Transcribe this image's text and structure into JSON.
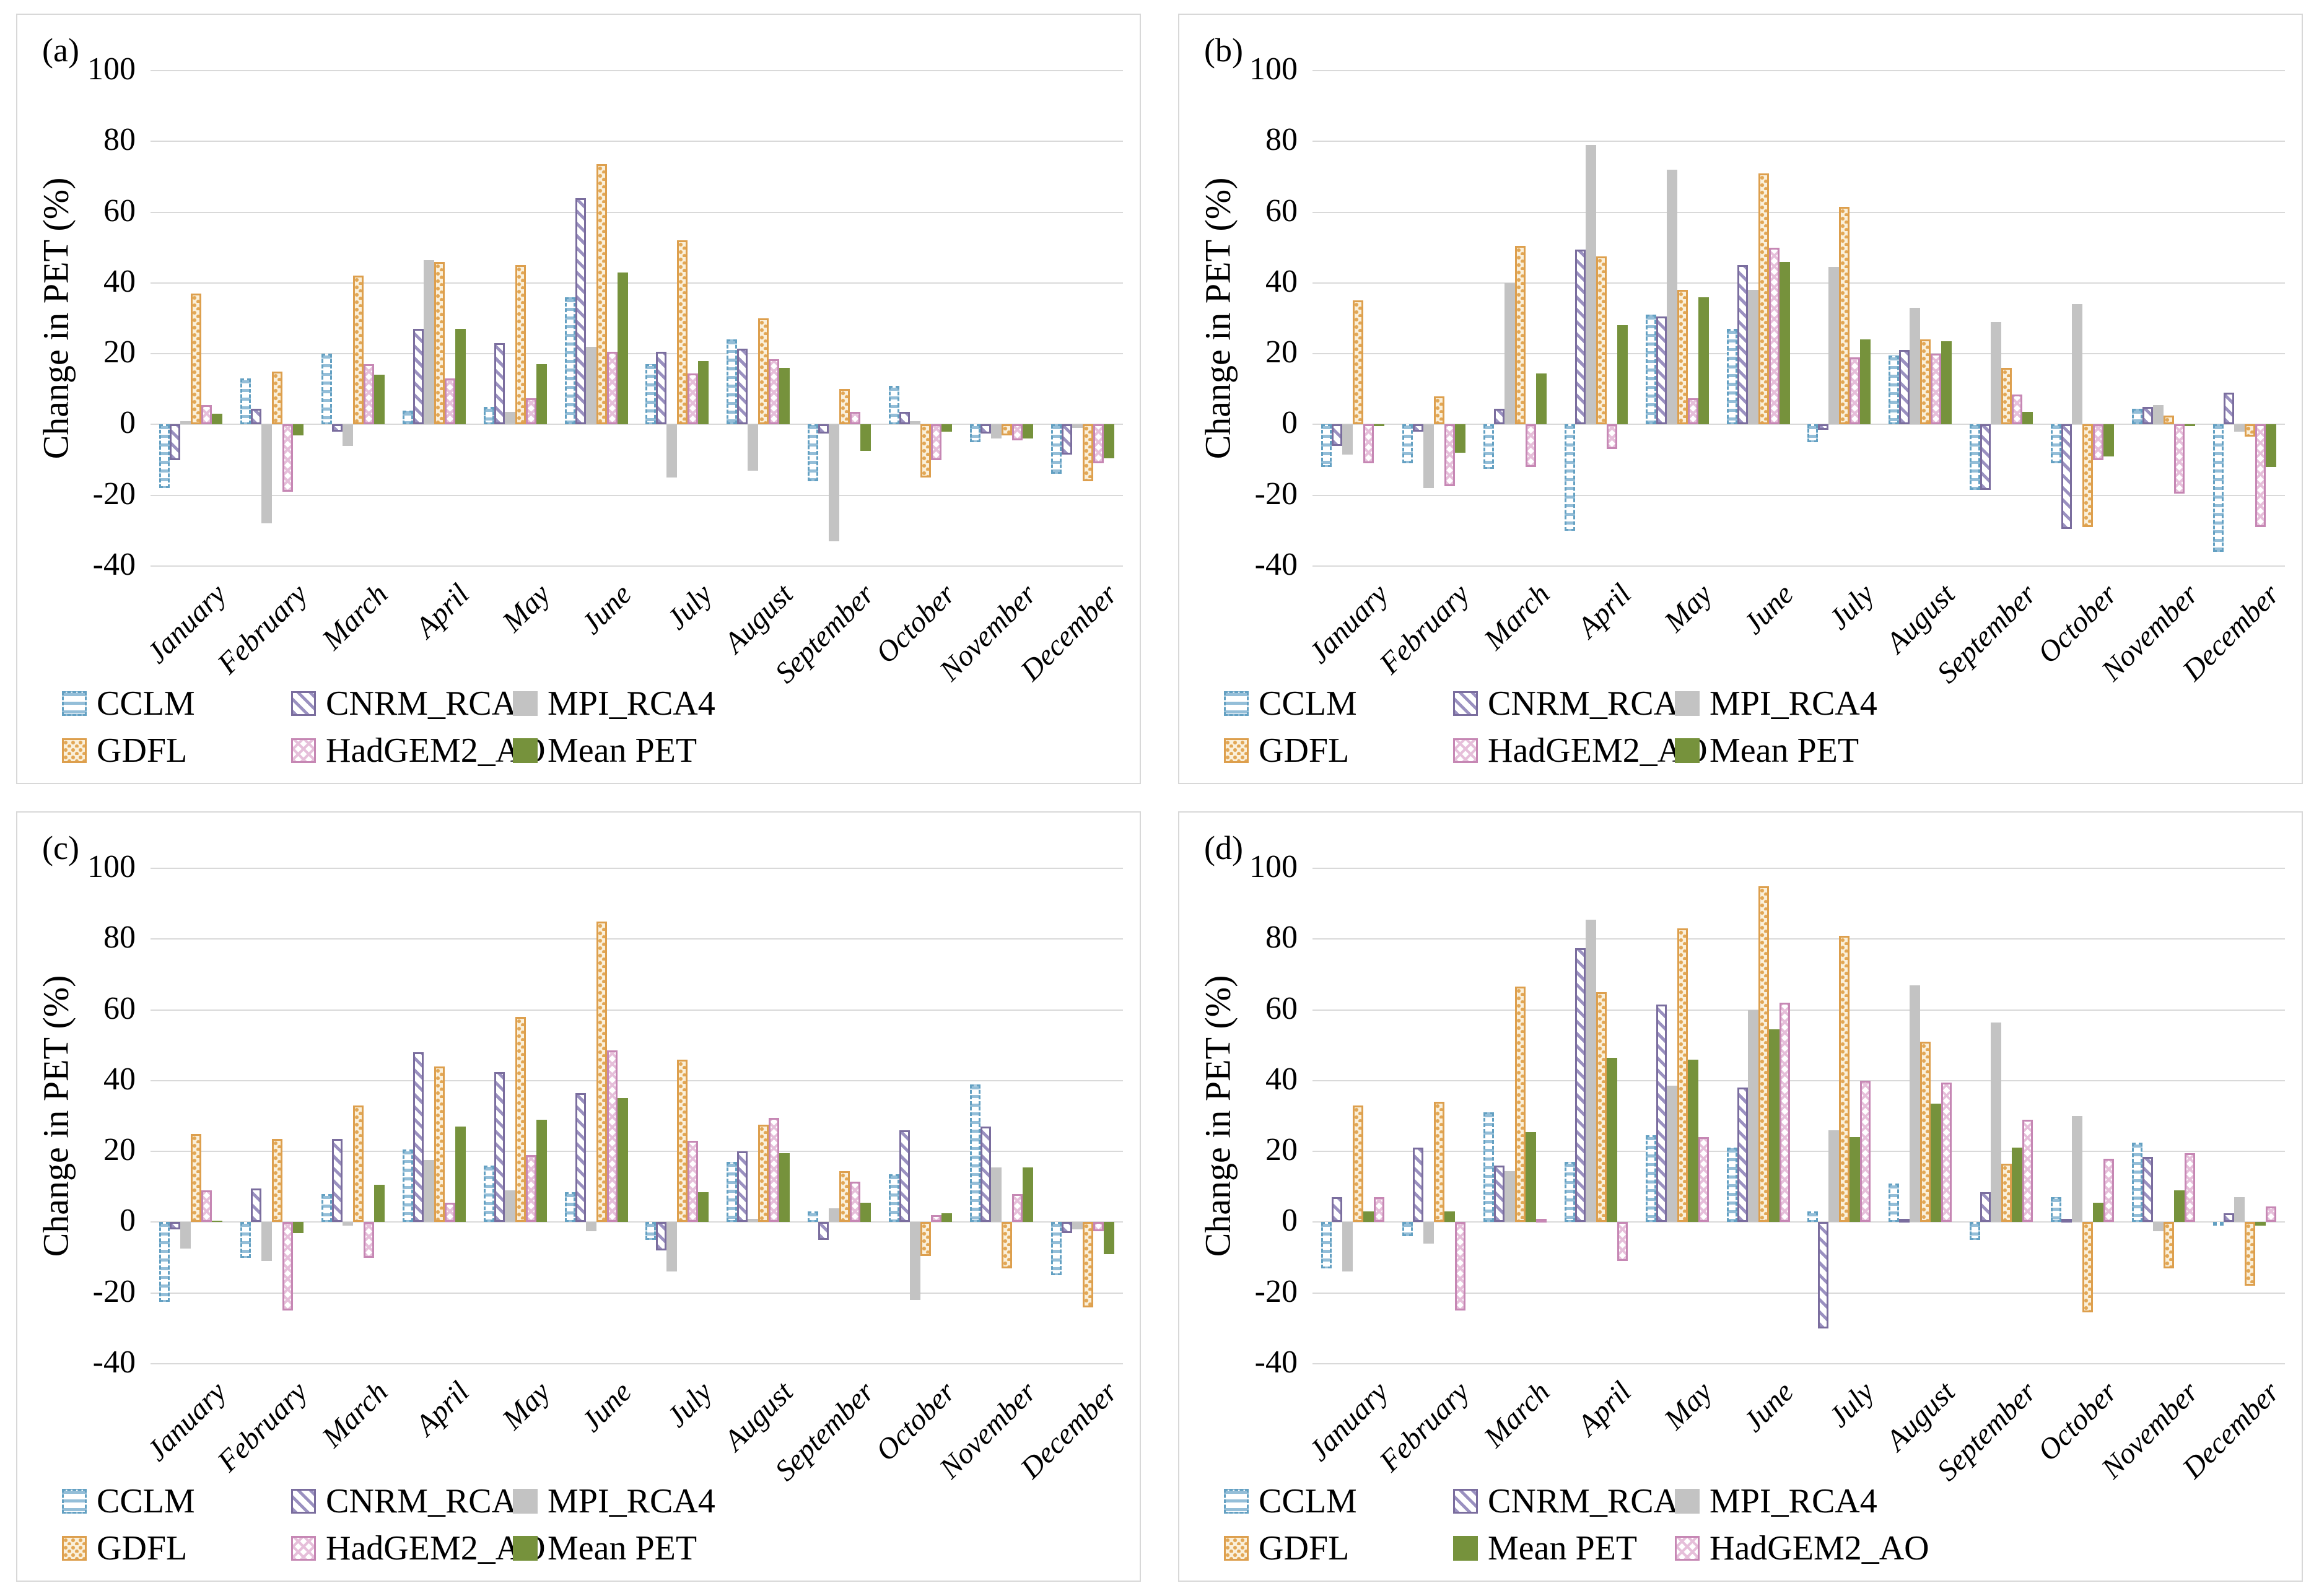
{
  "figure": {
    "ylabel": "Change in PET (%)"
  },
  "colors": {
    "CCLM": "#63a0c2",
    "CNRM_RCA": "#7a6d9e",
    "MPI_RCA4": "#c3c3c3",
    "GDFL": "#dd9f4d",
    "HadGEM2_AO": "#c687b4",
    "Mean PET": "#76923c",
    "grid": "#d9d9d9"
  },
  "chart_data": [
    {
      "id": "a",
      "label": "(a)",
      "type": "bar",
      "ylabel": "Change in PET (%)",
      "ylim": [
        -40,
        100
      ],
      "yticks": [
        100,
        80,
        60,
        40,
        20,
        0,
        -20,
        -40
      ],
      "categories": [
        "January",
        "February",
        "March",
        "April",
        "May",
        "June",
        "July",
        "August",
        "September",
        "October",
        "November",
        "December"
      ],
      "series": [
        {
          "name": "CCLM",
          "values": [
            -18,
            13,
            20,
            4,
            5,
            36,
            17,
            24,
            -16,
            11,
            -5,
            -14
          ]
        },
        {
          "name": "CNRM_RCA",
          "values": [
            -10,
            4.5,
            -2,
            27,
            23,
            64,
            20.5,
            21.5,
            -2.5,
            3.5,
            -2.5,
            -8.5
          ]
        },
        {
          "name": "MPI_RCA4",
          "values": [
            1,
            -28,
            -6,
            46.5,
            3.5,
            22,
            -15,
            -13,
            -33,
            1,
            -4,
            -1
          ]
        },
        {
          "name": "GDFL",
          "values": [
            37,
            15,
            42,
            46,
            45,
            73.5,
            52,
            30,
            10,
            -15,
            -3,
            -16
          ]
        },
        {
          "name": "HadGEM2_AO",
          "values": [
            5.5,
            -19,
            17,
            13,
            7.5,
            20.5,
            14.5,
            18.5,
            3.5,
            -10,
            -4.5,
            -11
          ]
        },
        {
          "name": "Mean PET",
          "values": [
            3,
            -3,
            14,
            27,
            17,
            43,
            18,
            16,
            -7.5,
            -2,
            -4,
            -9.5
          ]
        }
      ],
      "legend_rows": [
        [
          "CCLM",
          "CNRM_RCA",
          "MPI_RCA4"
        ],
        [
          "GDFL",
          "HadGEM2_AO",
          "Mean PET"
        ]
      ]
    },
    {
      "id": "b",
      "label": "(b)",
      "type": "bar",
      "ylabel": "Change in PET (%)",
      "ylim": [
        -40,
        100
      ],
      "yticks": [
        100,
        80,
        60,
        40,
        20,
        0,
        -20,
        -40
      ],
      "categories": [
        "January",
        "February",
        "March",
        "April",
        "May",
        "June",
        "July",
        "August",
        "September",
        "October",
        "November",
        "December"
      ],
      "series": [
        {
          "name": "CCLM",
          "values": [
            -12,
            -11,
            -12.5,
            -30,
            31,
            27,
            -5,
            19.5,
            -18.5,
            -11,
            4.5,
            -36
          ]
        },
        {
          "name": "CNRM_RCA",
          "values": [
            -6,
            -2,
            4.5,
            49.5,
            30.5,
            45,
            -1.5,
            21,
            -18.5,
            -29.5,
            5,
            9
          ]
        },
        {
          "name": "MPI_RCA4",
          "values": [
            -8.5,
            -18,
            40,
            79,
            72,
            38,
            44.5,
            33,
            29,
            34,
            5.5,
            -2
          ]
        },
        {
          "name": "GDFL",
          "values": [
            35,
            8,
            50.5,
            47.5,
            38,
            71,
            61.5,
            24,
            16,
            -29,
            2.5,
            -3.5
          ]
        },
        {
          "name": "HadGEM2_AO",
          "values": [
            -11,
            -17.5,
            -12,
            -7,
            7.5,
            50,
            19,
            20,
            8.5,
            -10,
            -19.5,
            -29
          ]
        },
        {
          "name": "Mean PET",
          "values": [
            -0.5,
            -8,
            14.5,
            28,
            36,
            46,
            24,
            23.5,
            3.5,
            -9,
            -0.5,
            -12
          ]
        }
      ],
      "legend_rows": [
        [
          "CCLM",
          "CNRM_RCA",
          "MPI_RCA4"
        ],
        [
          "GDFL",
          "HadGEM2_AO",
          "Mean PET"
        ]
      ]
    },
    {
      "id": "c",
      "label": "(c)",
      "type": "bar",
      "ylabel": "Change in PET (%)",
      "ylim": [
        -40,
        100
      ],
      "yticks": [
        100,
        80,
        60,
        40,
        20,
        0,
        -20,
        -40
      ],
      "categories": [
        "January",
        "February",
        "March",
        "April",
        "May",
        "June",
        "July",
        "August",
        "September",
        "October",
        "November",
        "December"
      ],
      "series": [
        {
          "name": "CCLM",
          "values": [
            -22.5,
            -10,
            8,
            20.5,
            16,
            8.5,
            -5,
            17,
            3,
            13.5,
            39,
            -15
          ]
        },
        {
          "name": "CNRM_RCA",
          "values": [
            -2,
            9.5,
            23.5,
            48,
            42.5,
            36.5,
            -8,
            20,
            -5,
            26,
            27,
            -3
          ]
        },
        {
          "name": "MPI_RCA4",
          "values": [
            -7.5,
            -11,
            -1,
            17.5,
            9,
            -2.5,
            -14,
            1,
            4,
            -22,
            15.5,
            -2
          ]
        },
        {
          "name": "GDFL",
          "values": [
            25,
            23.5,
            33,
            44,
            58,
            85,
            46,
            27.5,
            14.5,
            -9.5,
            -13,
            -24
          ]
        },
        {
          "name": "HadGEM2_AO",
          "values": [
            9,
            -25,
            -10,
            5.5,
            19,
            48.5,
            23,
            29.5,
            11.5,
            2,
            8,
            -2.5
          ]
        },
        {
          "name": "Mean PET",
          "values": [
            0.5,
            -3,
            10.5,
            27,
            29,
            35,
            8.5,
            19.5,
            5.5,
            2.5,
            15.5,
            -9
          ]
        }
      ],
      "legend_rows": [
        [
          "CCLM",
          "CNRM_RCA",
          "MPI_RCA4"
        ],
        [
          "GDFL",
          "HadGEM2_AO",
          "Mean PET"
        ]
      ]
    },
    {
      "id": "d",
      "label": "(d)",
      "type": "bar",
      "ylabel": "Change in PET (%)",
      "ylim": [
        -40,
        100
      ],
      "yticks": [
        100,
        80,
        60,
        40,
        20,
        0,
        -20,
        -40
      ],
      "categories": [
        "January",
        "February",
        "March",
        "April",
        "May",
        "June",
        "July",
        "August",
        "September",
        "October",
        "November",
        "December"
      ],
      "series": [
        {
          "name": "CCLM",
          "values": [
            -13,
            -4,
            31,
            17,
            24.5,
            21,
            3,
            11,
            -5,
            7,
            22.5,
            -1
          ]
        },
        {
          "name": "CNRM_RCA",
          "values": [
            7,
            21,
            16,
            77.5,
            61.5,
            38,
            -30,
            1,
            8.5,
            1,
            18.5,
            2.5
          ]
        },
        {
          "name": "MPI_RCA4",
          "values": [
            -14,
            -6,
            14.5,
            85.5,
            38.5,
            60,
            26,
            67,
            56.5,
            30,
            -2.5,
            7
          ]
        },
        {
          "name": "GDFL",
          "values": [
            33,
            34,
            66.5,
            65,
            83,
            95,
            81,
            51,
            16.5,
            -25.5,
            -13,
            -18
          ]
        },
        {
          "name": "Mean PET",
          "values": [
            3,
            3,
            25.5,
            46.5,
            46,
            54.5,
            24,
            33.5,
            21,
            5.5,
            9,
            -1
          ]
        },
        {
          "name": "HadGEM2_AO",
          "values": [
            7,
            -25,
            1,
            -11,
            24,
            62,
            40,
            39.5,
            29,
            18,
            19.5,
            4.5
          ]
        }
      ],
      "legend_rows": [
        [
          "CCLM",
          "CNRM_RCA",
          "MPI_RCA4"
        ],
        [
          "GDFL",
          "Mean PET",
          "HadGEM2_AO"
        ]
      ]
    }
  ]
}
